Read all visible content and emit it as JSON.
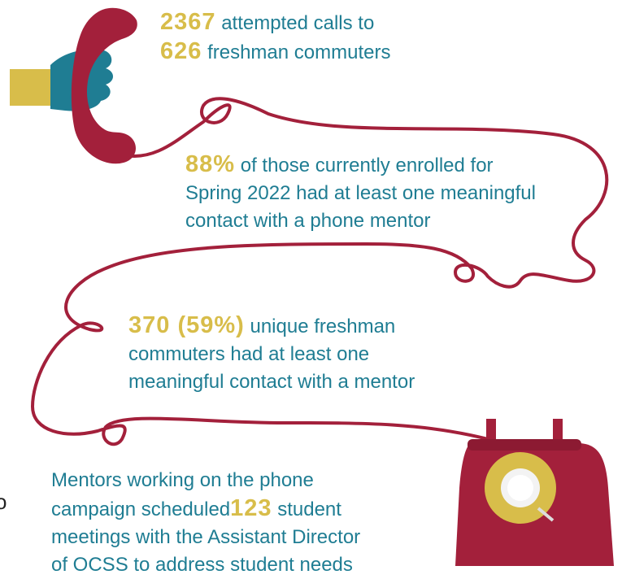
{
  "stats": [
    {
      "lines": [
        [
          "2367",
          "attempted calls to"
        ],
        [
          "626",
          "freshman commuters"
        ]
      ]
    },
    {
      "lines": [
        [
          "88%",
          "of those currently enrolled for"
        ],
        [
          "Spring 2022 had at least one meaningful"
        ],
        [
          "contact with a phone mentor"
        ]
      ]
    },
    {
      "lines": [
        [
          "370 (59%)",
          "unique freshman"
        ],
        [
          "commuters had at least one"
        ],
        [
          "meaningful contact with a mentor"
        ]
      ]
    },
    {
      "lines": [
        [
          "Mentors working on the phone"
        ],
        [
          "campaign scheduled",
          "123",
          "student"
        ],
        [
          "meetings with the Assistant Director"
        ],
        [
          "of OCSS to address student needs"
        ]
      ]
    }
  ],
  "edge_text": "o"
}
